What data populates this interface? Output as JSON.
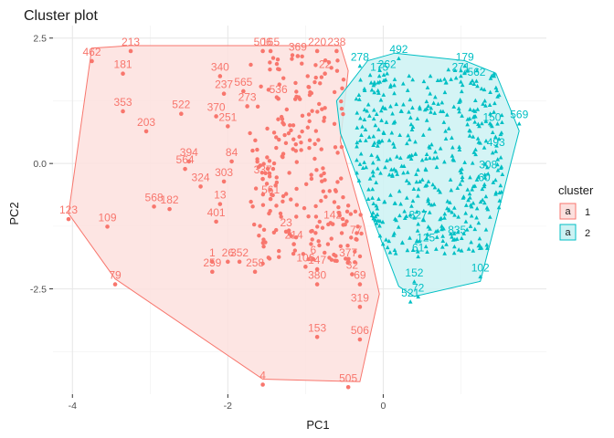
{
  "chart_data": {
    "type": "scatter",
    "title": "Cluster plot",
    "xlabel": "PC1",
    "ylabel": "PC2",
    "xlim": [
      -4.25,
      2.1
    ],
    "ylim": [
      -4.6,
      2.75
    ],
    "x_ticks": [
      -4,
      -2,
      0
    ],
    "x_tick_labels": [
      "-4",
      "-2",
      "0"
    ],
    "y_ticks": [
      2.5,
      0.0,
      -2.5
    ],
    "y_tick_labels": [
      "2.5",
      "0.0",
      "-2.5"
    ],
    "grid": true,
    "legend": {
      "title": "cluster",
      "position": "right",
      "entries": [
        {
          "label": "1",
          "symbol": "a",
          "color": "#F8766D",
          "fill": "#FCE0DE"
        },
        {
          "label": "2",
          "symbol": "a",
          "color": "#00BFC4",
          "fill": "#CCF2F3"
        }
      ]
    },
    "series": [
      {
        "name": "1",
        "color": "#F8766D",
        "fill": "#FDE1DE",
        "marker": "circle",
        "hull": [
          [
            -4.05,
            -1.0
          ],
          [
            -3.75,
            2.3
          ],
          [
            -3.25,
            2.35
          ],
          [
            -0.55,
            2.35
          ],
          [
            -0.45,
            1.85
          ],
          [
            -0.55,
            0.45
          ],
          [
            -0.25,
            -1.2
          ],
          [
            -0.05,
            -2.6
          ],
          [
            -0.3,
            -4.35
          ],
          [
            -1.55,
            -4.3
          ],
          [
            -3.45,
            -2.3
          ]
        ],
        "labeled_points": [
          {
            "label": "213",
            "x": -3.25,
            "y": 2.35
          },
          {
            "label": "462",
            "x": -3.75,
            "y": 2.15
          },
          {
            "label": "181",
            "x": -3.35,
            "y": 1.9
          },
          {
            "label": "353",
            "x": -3.35,
            "y": 1.15
          },
          {
            "label": "203",
            "x": -3.05,
            "y": 0.75
          },
          {
            "label": "522",
            "x": -2.6,
            "y": 1.1
          },
          {
            "label": "340",
            "x": -2.1,
            "y": 1.85
          },
          {
            "label": "237",
            "x": -2.05,
            "y": 1.5
          },
          {
            "label": "565",
            "x": -1.8,
            "y": 1.55
          },
          {
            "label": "273",
            "x": -1.75,
            "y": 1.25
          },
          {
            "label": "370",
            "x": -2.15,
            "y": 1.05
          },
          {
            "label": "251",
            "x": -2.0,
            "y": 0.85
          },
          {
            "label": "394",
            "x": -2.5,
            "y": 0.15
          },
          {
            "label": "564",
            "x": -2.55,
            "y": 0.0
          },
          {
            "label": "324",
            "x": -2.35,
            "y": -0.35
          },
          {
            "label": "303",
            "x": -2.05,
            "y": -0.25
          },
          {
            "label": "568",
            "x": -2.95,
            "y": -0.75
          },
          {
            "label": "182",
            "x": -2.75,
            "y": -0.8
          },
          {
            "label": "13",
            "x": -2.1,
            "y": -0.7
          },
          {
            "label": "401",
            "x": -2.15,
            "y": -1.05
          },
          {
            "label": "123",
            "x": -4.05,
            "y": -1.0
          },
          {
            "label": "109",
            "x": -3.55,
            "y": -1.15
          },
          {
            "label": "79",
            "x": -3.45,
            "y": -2.3
          },
          {
            "label": "1",
            "x": -2.2,
            "y": -1.85
          },
          {
            "label": "26",
            "x": -2.0,
            "y": -1.85
          },
          {
            "label": "259",
            "x": -2.2,
            "y": -2.05
          },
          {
            "label": "352",
            "x": -1.85,
            "y": -1.85
          },
          {
            "label": "258",
            "x": -1.65,
            "y": -2.05
          },
          {
            "label": "506",
            "x": -1.55,
            "y": 2.35
          },
          {
            "label": "165",
            "x": -1.45,
            "y": 2.35
          },
          {
            "label": "369",
            "x": -1.1,
            "y": 2.25
          },
          {
            "label": "220",
            "x": -0.85,
            "y": 2.35
          },
          {
            "label": "238",
            "x": -0.6,
            "y": 2.35
          },
          {
            "label": "22",
            "x": -0.75,
            "y": 1.9
          },
          {
            "label": "536",
            "x": -1.35,
            "y": 1.4
          },
          {
            "label": "84",
            "x": -1.95,
            "y": 0.15
          },
          {
            "label": "337",
            "x": -1.55,
            "y": -0.2
          },
          {
            "label": "561",
            "x": -1.45,
            "y": -0.6
          },
          {
            "label": "23",
            "x": -1.25,
            "y": -1.25
          },
          {
            "label": "214",
            "x": -1.15,
            "y": -1.5
          },
          {
            "label": "106",
            "x": -1.0,
            "y": -1.95
          },
          {
            "label": "380",
            "x": -0.85,
            "y": -2.3
          },
          {
            "label": "6",
            "x": -0.9,
            "y": -1.8
          },
          {
            "label": "147",
            "x": -0.85,
            "y": -2.0
          },
          {
            "label": "377",
            "x": -0.45,
            "y": -1.85
          },
          {
            "label": "32",
            "x": -0.4,
            "y": -2.1
          },
          {
            "label": "69",
            "x": -0.3,
            "y": -2.3
          },
          {
            "label": "319",
            "x": -0.3,
            "y": -2.75
          },
          {
            "label": "153",
            "x": -0.85,
            "y": -3.35
          },
          {
            "label": "506",
            "x": -0.3,
            "y": -3.4
          },
          {
            "label": "4",
            "x": -1.55,
            "y": -4.3
          },
          {
            "label": "505",
            "x": -0.45,
            "y": -4.35
          },
          {
            "label": "142",
            "x": -0.65,
            "y": -1.1
          },
          {
            "label": "77",
            "x": -0.35,
            "y": -1.4
          }
        ]
      },
      {
        "name": "2",
        "color": "#00BFC4",
        "fill": "#CCF2F3",
        "marker": "triangle",
        "hull": [
          [
            -0.6,
            1.25
          ],
          [
            -0.2,
            2.05
          ],
          [
            0.15,
            2.2
          ],
          [
            1.05,
            2.05
          ],
          [
            1.45,
            1.8
          ],
          [
            1.75,
            0.65
          ],
          [
            1.25,
            -2.35
          ],
          [
            0.4,
            -2.65
          ],
          [
            0.2,
            -2.45
          ],
          [
            -0.55,
            0.6
          ]
        ],
        "labeled_points": [
          {
            "label": "278",
            "x": -0.3,
            "y": 2.05
          },
          {
            "label": "492",
            "x": 0.2,
            "y": 2.2
          },
          {
            "label": "179",
            "x": 1.05,
            "y": 2.05
          },
          {
            "label": "271",
            "x": 1.0,
            "y": 1.85
          },
          {
            "label": "562",
            "x": 1.2,
            "y": 1.75
          },
          {
            "label": "569",
            "x": 1.75,
            "y": 0.9
          },
          {
            "label": "150",
            "x": 1.4,
            "y": 0.85
          },
          {
            "label": "493",
            "x": 1.45,
            "y": 0.35
          },
          {
            "label": "308",
            "x": 1.35,
            "y": -0.1
          },
          {
            "label": "60",
            "x": 1.3,
            "y": -0.35
          },
          {
            "label": "327",
            "x": 0.45,
            "y": -1.1
          },
          {
            "label": "835",
            "x": 0.95,
            "y": -1.4
          },
          {
            "label": "125",
            "x": 0.55,
            "y": -1.55
          },
          {
            "label": "61",
            "x": 0.45,
            "y": -1.75
          },
          {
            "label": "102",
            "x": 1.25,
            "y": -2.15
          },
          {
            "label": "152",
            "x": 0.4,
            "y": -2.25
          },
          {
            "label": "72",
            "x": 0.45,
            "y": -2.55
          },
          {
            "label": "521",
            "x": 0.35,
            "y": -2.65
          },
          {
            "label": "262",
            "x": 0.05,
            "y": 1.9
          },
          {
            "label": "175",
            "x": -0.05,
            "y": 1.85
          }
        ]
      }
    ]
  }
}
